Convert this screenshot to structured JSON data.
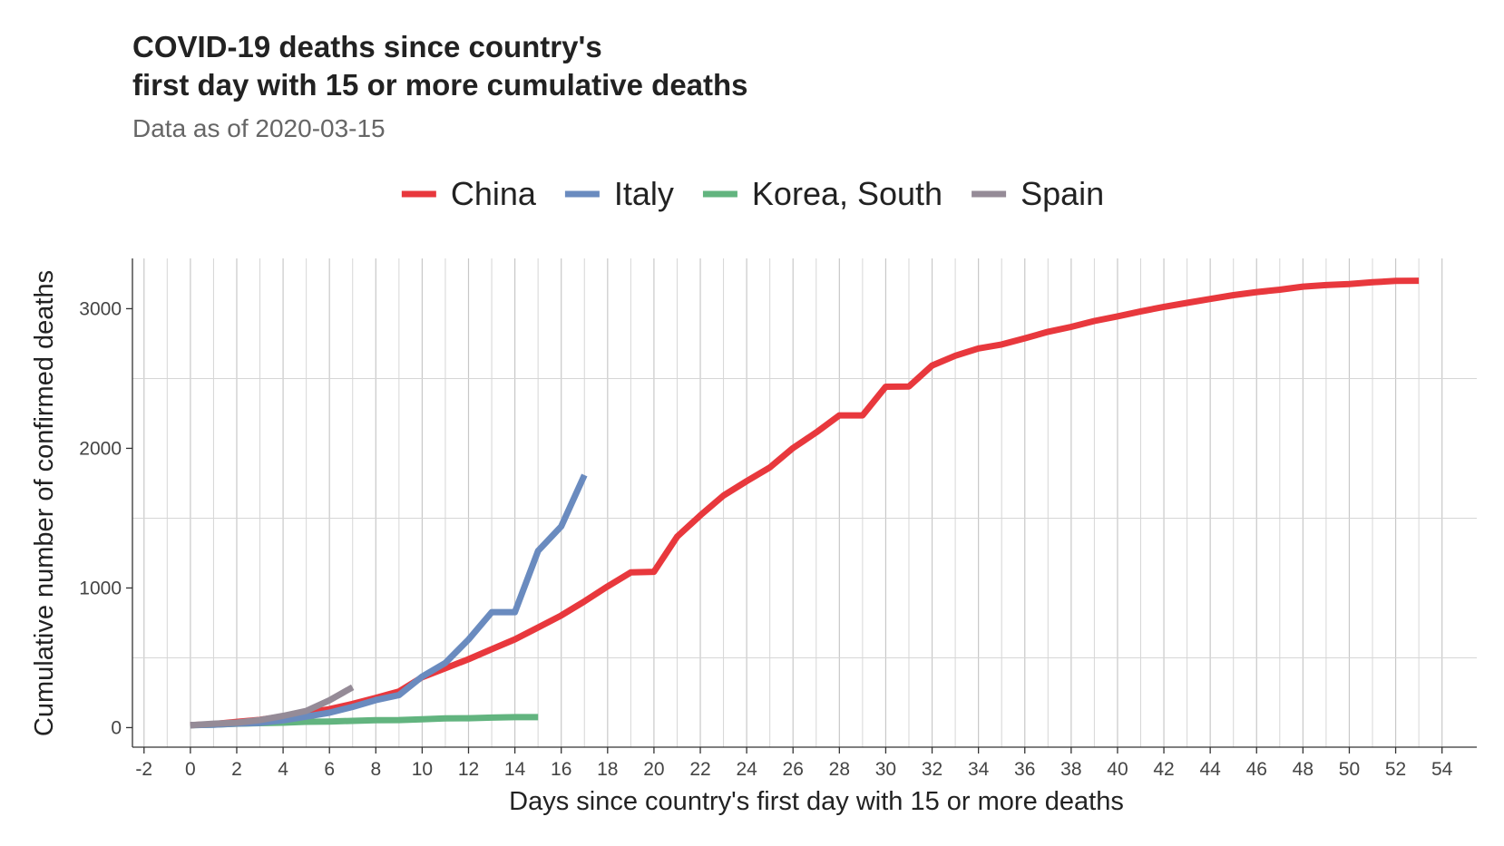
{
  "chart_data": {
    "type": "line",
    "title_line1": "COVID-19 deaths since country's",
    "title_line2": "first day with 15 or more cumulative deaths",
    "subtitle": "Data as of 2020-03-15",
    "xlabel": "Days since country's first day with 15 or more deaths",
    "ylabel": "Cumulative number of confirmed deaths",
    "xlim": [
      -2.5,
      55.5
    ],
    "ylim": [
      -140,
      3360
    ],
    "x_ticks": [
      -2,
      0,
      2,
      4,
      6,
      8,
      10,
      12,
      14,
      16,
      18,
      20,
      22,
      24,
      26,
      28,
      30,
      32,
      34,
      36,
      38,
      40,
      42,
      44,
      46,
      48,
      50,
      52,
      54
    ],
    "y_ticks": [
      0,
      1000,
      2000,
      3000
    ],
    "y_minor_grid": [
      500,
      1500,
      2500
    ],
    "grid": true,
    "legend_position": "top",
    "series": [
      {
        "name": "China",
        "color": "#e8383d",
        "x": [
          0,
          1,
          2,
          3,
          4,
          5,
          6,
          7,
          8,
          9,
          10,
          11,
          12,
          13,
          14,
          15,
          16,
          17,
          18,
          19,
          20,
          21,
          22,
          23,
          24,
          25,
          26,
          27,
          28,
          29,
          30,
          31,
          32,
          33,
          34,
          35,
          36,
          37,
          38,
          39,
          40,
          41,
          42,
          43,
          44,
          45,
          46,
          47,
          48,
          49,
          50,
          51,
          52,
          53
        ],
        "values": [
          17,
          25,
          41,
          56,
          80,
          106,
          132,
          170,
          213,
          259,
          361,
          425,
          490,
          562,
          632,
          717,
          803,
          904,
          1011,
          1111,
          1116,
          1368,
          1520,
          1662,
          1765,
          1863,
          2002,
          2114,
          2236,
          2236,
          2441,
          2443,
          2593,
          2663,
          2715,
          2744,
          2788,
          2835,
          2870,
          2912,
          2945,
          2981,
          3013,
          3042,
          3070,
          3097,
          3119,
          3136,
          3158,
          3169,
          3176,
          3189,
          3199,
          3200
        ]
      },
      {
        "name": "Italy",
        "color": "#6a8bbf",
        "x": [
          0,
          1,
          2,
          3,
          4,
          5,
          6,
          7,
          8,
          9,
          10,
          11,
          12,
          13,
          14,
          15,
          16,
          17
        ],
        "values": [
          17,
          21,
          29,
          34,
          52,
          79,
          107,
          148,
          197,
          233,
          366,
          463,
          631,
          827,
          827,
          1266,
          1441,
          1809
        ]
      },
      {
        "name": "Korea, South",
        "color": "#62b47f",
        "x": [
          0,
          1,
          2,
          3,
          4,
          5,
          6,
          7,
          8,
          9,
          10,
          11,
          12,
          13,
          14,
          15
        ],
        "values": [
          17,
          22,
          28,
          32,
          35,
          42,
          44,
          48,
          53,
          54,
          60,
          66,
          67,
          72,
          75,
          75
        ]
      },
      {
        "name": "Spain",
        "color": "#958b97",
        "x": [
          0,
          1,
          2,
          3,
          4,
          5,
          6,
          7
        ],
        "values": [
          17,
          28,
          35,
          54,
          84,
          120,
          196,
          289
        ]
      }
    ]
  }
}
